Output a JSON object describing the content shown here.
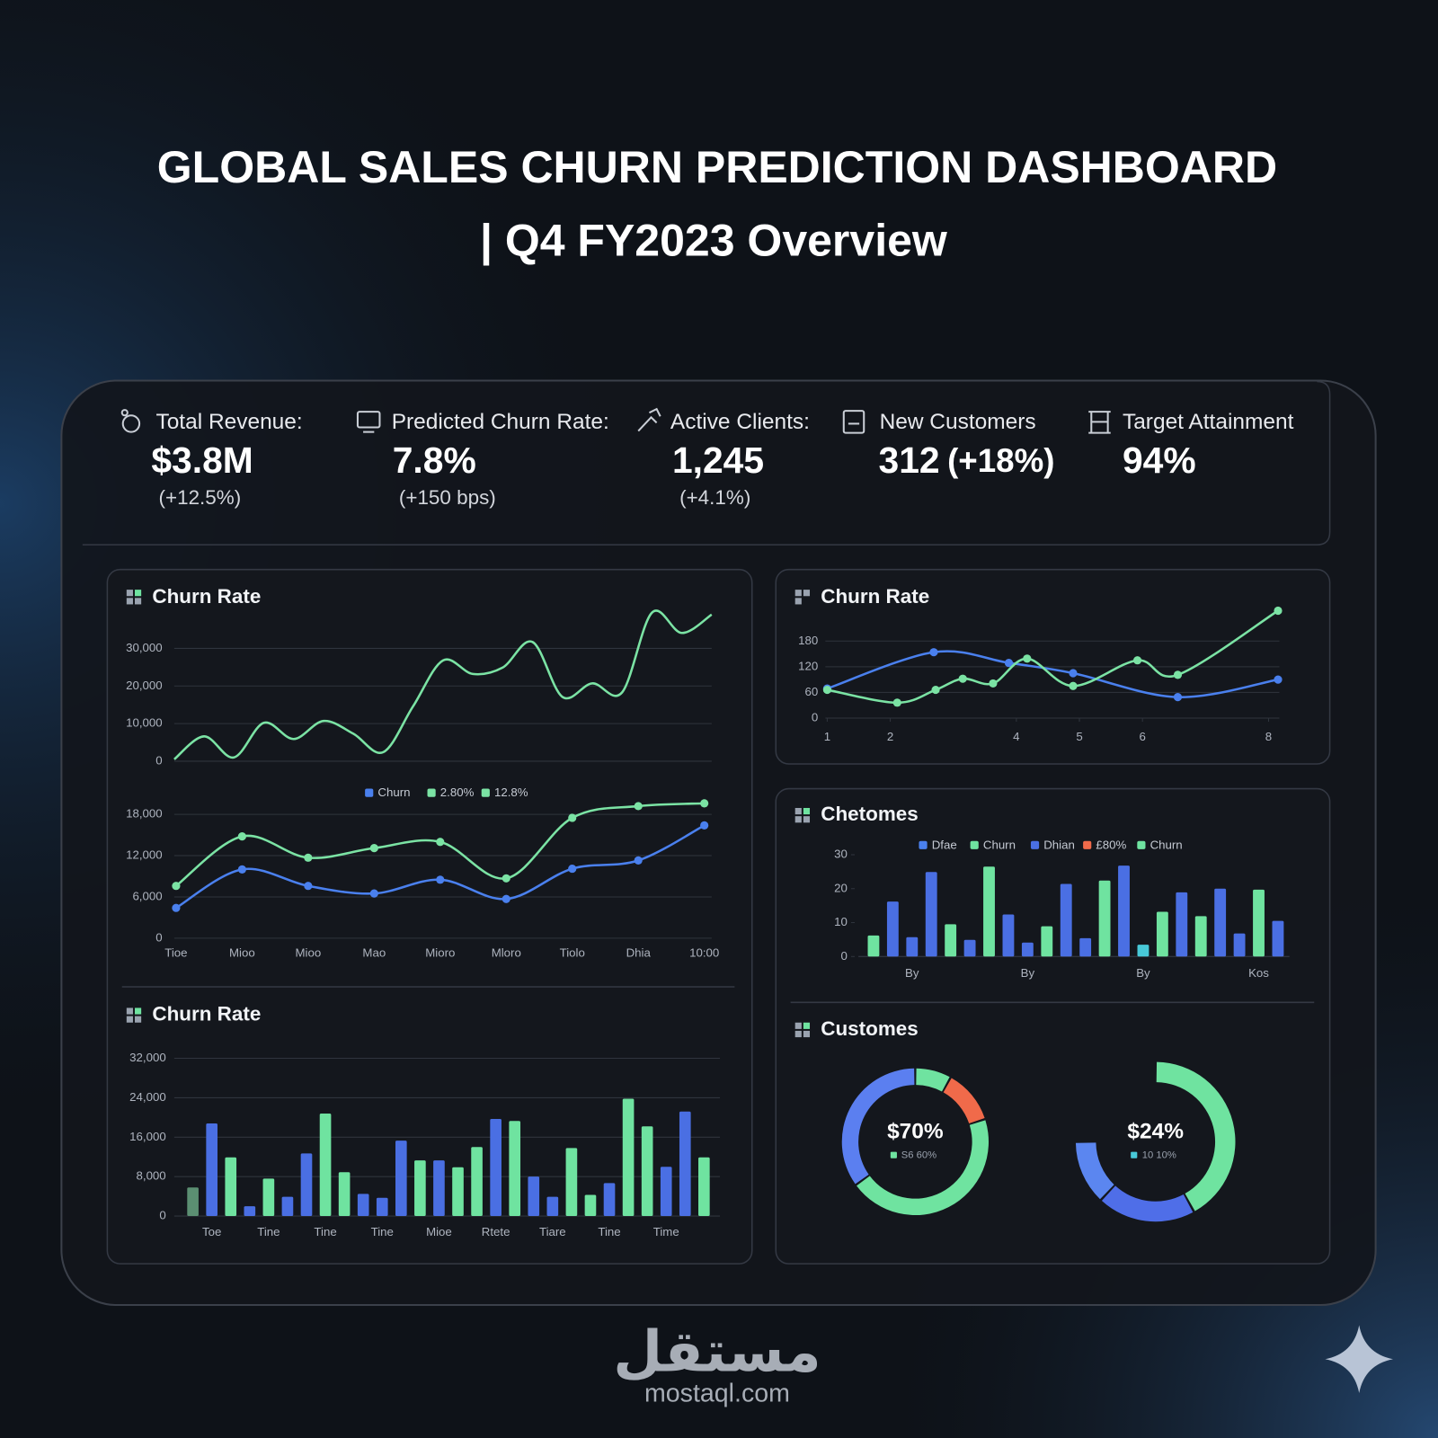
{
  "header": {
    "title": "GLOBAL SALES CHURN PREDICTION DASHBOARD",
    "subtitle": "| Q4 FY2023 Overview"
  },
  "kpis": [
    {
      "label": "Total Revenue:",
      "value": "$3.8M",
      "change": "(+12.5%)"
    },
    {
      "label": "Predicted Churn Rate:",
      "value": "7.8%",
      "change": "(+150 bps)"
    },
    {
      "label": "Active Clients:",
      "value": "1,245",
      "change": "(+4.1%)"
    },
    {
      "label": "New Customers",
      "value": "312",
      "change": "(+18%)"
    },
    {
      "label": "Target Attainment",
      "value": "94%"
    }
  ],
  "chart_data": [
    {
      "type": "line",
      "title": "Churn Rate",
      "color": "#7be3a4",
      "values": [
        500,
        6600,
        1000,
        10200,
        5900,
        10700,
        7300,
        2400,
        14600,
        26800,
        23200,
        24900,
        31700,
        17100,
        20700,
        18300,
        39500,
        34100,
        39000
      ],
      "ylim": [
        0,
        40000
      ],
      "yticks": [
        0,
        {
          "value": 10000,
          "label": "10,000"
        },
        {
          "value": 20000,
          "label": "20,000"
        },
        {
          "value": 30000,
          "label": "30,000"
        }
      ],
      "grid": true
    },
    {
      "type": "line",
      "markers": true,
      "categories": [
        "Tioe",
        "Mioo",
        "Mioo",
        "Mao",
        "Mioro",
        "Mloro",
        "Tiolo",
        "Dhia",
        "10:00"
      ],
      "series": [
        {
          "color": "#7be3a4",
          "values": [
            7600,
            14800,
            11700,
            13100,
            14000,
            8700,
            17500,
            19200,
            19600
          ]
        },
        {
          "color": "#4a80ee",
          "values": [
            4400,
            10000,
            7600,
            6500,
            8500,
            5700,
            10100,
            11300,
            16400
          ]
        }
      ],
      "legend": [
        {
          "name": "Churn",
          "color": "#4a80ee"
        },
        {
          "name": "2.80%",
          "color": "#7be3a4"
        },
        {
          "name": "12.8%",
          "color": "#7be3a4"
        }
      ],
      "ylim": [
        0,
        21000
      ],
      "yticks": [
        0,
        {
          "value": 6000,
          "label": "6,000"
        },
        {
          "value": 12000,
          "label": "12,000"
        },
        {
          "value": 18000,
          "label": "18,000"
        }
      ],
      "grid": true
    },
    {
      "type": "bar",
      "title": "Churn Rate",
      "categories": [
        null,
        "Toe",
        null,
        null,
        "Tine",
        null,
        null,
        "Tine",
        null,
        null,
        "Tine",
        null,
        null,
        "Mioe",
        null,
        null,
        "Rtete",
        null,
        null,
        "Tiare",
        null,
        null,
        "Tine",
        null,
        null,
        "Time",
        null,
        null
      ],
      "values": [
        5800,
        18800,
        11900,
        2000,
        7600,
        3900,
        12700,
        20800,
        8900,
        4500,
        3700,
        15300,
        11300,
        11300,
        9900,
        14000,
        19700,
        19300,
        8000,
        3900,
        13800,
        4300,
        6700,
        23800,
        18200,
        10000,
        21200,
        11900
      ],
      "colors": [
        "#5b8f72",
        "#4a6fe3",
        "#6fe3a0",
        "#4a6fe3",
        "#6fe3a0",
        "#4a6fe3",
        "#4a6fe3",
        "#6fe3a0",
        "#6fe3a0",
        "#4a6fe3",
        "#4a6fe3",
        "#4a6fe3",
        "#6fe3a0",
        "#4a6fe3",
        "#6fe3a0",
        "#6fe3a0",
        "#4a6fe3",
        "#6fe3a0",
        "#4a6fe3",
        "#4a6fe3",
        "#6fe3a0",
        "#6fe3a0",
        "#4a6fe3",
        "#6fe3a0",
        "#6fe3a0",
        "#4a6fe3",
        "#4a6fe3",
        "#6fe3a0"
      ],
      "ylim": [
        0,
        32000
      ],
      "yticks": [
        0,
        {
          "value": 8000,
          "label": "8,000"
        },
        {
          "value": 16000,
          "label": "16,000"
        },
        {
          "value": 24000,
          "label": "24,000"
        },
        {
          "value": 32000,
          "label": "32,000"
        }
      ],
      "grid": true
    },
    {
      "type": "line",
      "title": "Churn Rate",
      "markers": true,
      "series": [
        {
          "color": "#4a80ee",
          "x": [
            1,
            2.69,
            3.88,
            4.9,
            6.56,
            8.15
          ],
          "values": [
            69,
            154,
            129,
            105,
            49,
            90
          ]
        },
        {
          "color": "#7be3a4",
          "x": [
            1,
            2.11,
            2.72,
            3.15,
            3.63,
            4.17,
            4.9,
            5.92,
            6.56,
            8.15
          ],
          "values": [
            66,
            36,
            66,
            92,
            81,
            139,
            75,
            135,
            101,
            251
          ]
        }
      ],
      "xlim": [
        1,
        8.2
      ],
      "xticks": [
        1,
        2,
        4,
        5,
        6,
        8
      ],
      "ylim": [
        0,
        260
      ],
      "yticks": [
        0,
        60,
        120,
        180
      ],
      "grid": true
    },
    {
      "type": "bar",
      "title": "Chetomes",
      "categories": [
        null,
        null,
        "By",
        null,
        null,
        null,
        null,
        null,
        "By",
        null,
        null,
        null,
        null,
        null,
        "By",
        null,
        null,
        null,
        null,
        null,
        "Kos",
        null
      ],
      "values": [
        6.2,
        16.2,
        5.7,
        24.9,
        9.5,
        4.9,
        26.5,
        12.4,
        4.1,
        8.9,
        21.4,
        5.4,
        22.4,
        26.8,
        3.5,
        13.2,
        18.9,
        11.9,
        20.0,
        6.8,
        19.7,
        10.5
      ],
      "colors": [
        "#6fe3a0",
        "#4a6fe3",
        "#4a6fe3",
        "#4a6fe3",
        "#6fe3a0",
        "#4a6fe3",
        "#6fe3a0",
        "#4a6fe3",
        "#4a6fe3",
        "#6fe3a0",
        "#4a6fe3",
        "#4a6fe3",
        "#6fe3a0",
        "#4a6fe3",
        "#48c9d8",
        "#6fe3a0",
        "#4a6fe3",
        "#6fe3a0",
        "#4a6fe3",
        "#4a6fe3",
        "#6fe3a0",
        "#4a6fe3"
      ],
      "legend": [
        {
          "name": "Dfae",
          "color": "#4a80ee"
        },
        {
          "name": "Churn",
          "color": "#6fe3a0"
        },
        {
          "name": "Dhian",
          "color": "#4a6fe3"
        },
        {
          "name": "£80%",
          "color": "#f06a4a"
        },
        {
          "name": "Churn",
          "color": "#6fe3a0"
        }
      ],
      "ylim": [
        0,
        30
      ],
      "yticks": [
        0,
        10,
        20,
        30
      ],
      "grid": false
    },
    {
      "type": "donut",
      "title": "Customes",
      "pies": [
        {
          "label": "$70%",
          "sublabel": "S6 60%",
          "legend_color": "#6fe3a0",
          "values": [
            8,
            12,
            45,
            35
          ],
          "colors": [
            "#6fe3a0",
            "#f06a4a",
            "#6fe3a0",
            "#5b7ff0"
          ]
        },
        {
          "label": "$24%",
          "sublabel": "10 10%",
          "legend_color": "#48c9d8",
          "values": [
            42,
            20,
            13,
            25
          ],
          "colors": [
            "#6fe3a0",
            "#4f6ee8",
            "#5b86f0",
            "none"
          ]
        }
      ]
    }
  ],
  "footer": {
    "brand": "مستقل",
    "url": "mostaql.com"
  }
}
